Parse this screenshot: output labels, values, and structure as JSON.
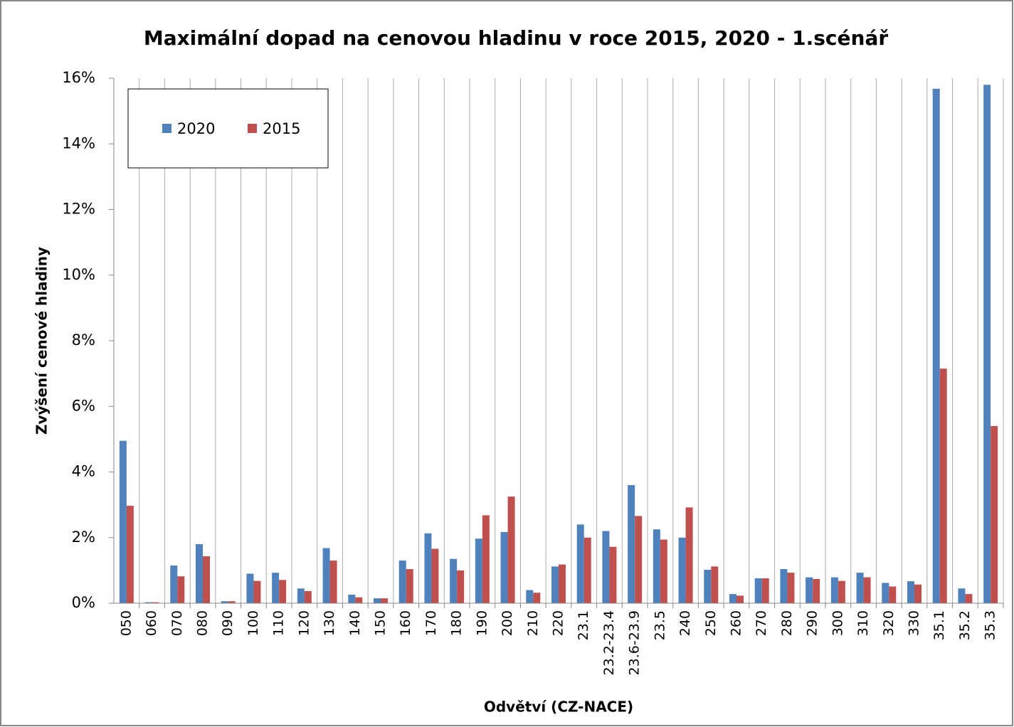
{
  "chart_data": {
    "type": "bar",
    "title": "Maximální dopad na cenovou hladinu v roce 2015, 2020 - 1.scénář",
    "x_label": "Odvětví (CZ-NACE)",
    "y_label": "Zvýšení cenové hladiny",
    "categories": [
      "050",
      "060",
      "070",
      "080",
      "090",
      "100",
      "110",
      "120",
      "130",
      "140",
      "150",
      "160",
      "170",
      "180",
      "190",
      "200",
      "210",
      "220",
      "23.1",
      "23.2-23.4",
      "23.6-23.9",
      "23.5",
      "240",
      "250",
      "260",
      "270",
      "280",
      "290",
      "300",
      "310",
      "320",
      "330",
      "35.1",
      "35.2",
      "35.3"
    ],
    "series": [
      {
        "name": "2020",
        "color": "#4f81bd",
        "values": [
          4.95,
          0.03,
          1.15,
          1.8,
          0.06,
          0.9,
          0.93,
          0.45,
          1.68,
          0.26,
          0.15,
          1.3,
          2.13,
          1.35,
          1.97,
          2.17,
          0.4,
          1.12,
          2.4,
          2.2,
          3.6,
          2.25,
          2.0,
          1.02,
          0.28,
          0.76,
          1.04,
          0.79,
          0.79,
          0.93,
          0.62,
          0.67,
          15.68,
          0.45,
          15.8
        ]
      },
      {
        "name": "2015",
        "color": "#c0504d",
        "values": [
          2.97,
          0.03,
          0.82,
          1.43,
          0.06,
          0.68,
          0.71,
          0.37,
          1.3,
          0.18,
          0.15,
          1.04,
          1.66,
          1.0,
          2.68,
          3.25,
          0.32,
          1.18,
          2.0,
          1.72,
          2.66,
          1.94,
          2.92,
          1.12,
          0.23,
          0.76,
          0.93,
          0.74,
          0.68,
          0.79,
          0.51,
          0.57,
          7.15,
          0.28,
          5.4
        ]
      }
    ],
    "ylim": [
      0,
      16
    ],
    "yticks": [
      {
        "value": 0,
        "label": "0%"
      },
      {
        "value": 2,
        "label": "2%"
      },
      {
        "value": 4,
        "label": "4%"
      },
      {
        "value": 6,
        "label": "6%"
      },
      {
        "value": 8,
        "label": "8%"
      },
      {
        "value": 10,
        "label": "10%"
      },
      {
        "value": 12,
        "label": "12%"
      },
      {
        "value": 14,
        "label": "14%"
      },
      {
        "value": 16,
        "label": "16%"
      }
    ],
    "grid": true
  }
}
